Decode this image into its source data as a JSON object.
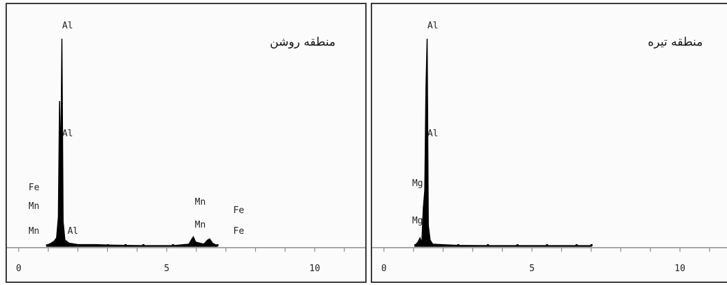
{
  "colors": {
    "frame": "#3a3a3a",
    "spectrum": "#000000",
    "background": "#fbfbfb",
    "text": "#222222"
  },
  "chart_data": [
    {
      "type": "line",
      "title": "منطقه روشن",
      "xlabel": "",
      "ylabel": "",
      "xlim": [
        -0.2,
        11.7
      ],
      "ylim": [
        0,
        100
      ],
      "x_ticks": [
        0,
        5,
        10
      ],
      "series": [
        {
          "values": [
            [
              0.95,
              0.5
            ],
            [
              1.1,
              1.5
            ],
            [
              1.2,
              2.5
            ],
            [
              1.28,
              4
            ],
            [
              1.34,
              14
            ],
            [
              1.38,
              70
            ],
            [
              1.42,
              38
            ],
            [
              1.46,
              100
            ],
            [
              1.5,
              12
            ],
            [
              1.56,
              3
            ],
            [
              1.7,
              1.5
            ],
            [
              2.0,
              0.8
            ],
            [
              2.6,
              0.8
            ],
            [
              3.0,
              0.6
            ],
            [
              3.6,
              0.4
            ],
            [
              4.2,
              0.3
            ],
            [
              5.2,
              0.3
            ],
            [
              5.75,
              1
            ],
            [
              5.85,
              3.5
            ],
            [
              5.9,
              4.5
            ],
            [
              5.98,
              2
            ],
            [
              6.25,
              1
            ],
            [
              6.38,
              3
            ],
            [
              6.45,
              3.5
            ],
            [
              6.55,
              1.5
            ],
            [
              6.7,
              0.3
            ]
          ]
        }
      ],
      "peak_labels": [
        {
          "text": "Al",
          "x": 1.47,
          "y": 105
        },
        {
          "text": "Al",
          "x": 1.47,
          "y": 53
        },
        {
          "text": "Fe",
          "x": 0.7,
          "y": 27
        },
        {
          "text": "Mn",
          "x": 0.7,
          "y": 18
        },
        {
          "text": "Mn",
          "x": 0.7,
          "y": 6
        },
        {
          "text": "Al",
          "x": 1.65,
          "y": 6
        },
        {
          "text": "Mn",
          "x": 5.95,
          "y": 20
        },
        {
          "text": "Mn",
          "x": 5.95,
          "y": 9
        },
        {
          "text": "Fe",
          "x": 7.25,
          "y": 16
        },
        {
          "text": "Fe",
          "x": 7.25,
          "y": 6
        }
      ]
    },
    {
      "type": "line",
      "title": "منطقه تیره",
      "xlabel": "",
      "ylabel": "",
      "xlim": [
        -0.2,
        11.7
      ],
      "ylim": [
        0,
        100
      ],
      "x_ticks": [
        0,
        5,
        10
      ],
      "series": [
        {
          "values": [
            [
              1.05,
              0.5
            ],
            [
              1.15,
              2
            ],
            [
              1.22,
              4
            ],
            [
              1.28,
              1.5
            ],
            [
              1.33,
              18
            ],
            [
              1.38,
              27
            ],
            [
              1.42,
              76
            ],
            [
              1.46,
              100
            ],
            [
              1.5,
              10
            ],
            [
              1.56,
              3
            ],
            [
              1.65,
              1
            ],
            [
              2.5,
              0.4
            ],
            [
              3.5,
              0.3
            ],
            [
              4.5,
              0.3
            ],
            [
              5.5,
              0.3
            ],
            [
              6.5,
              0.3
            ],
            [
              7.0,
              0.3
            ]
          ]
        }
      ],
      "peak_labels": [
        {
          "text": "Al",
          "x": 1.47,
          "y": 105
        },
        {
          "text": "Al",
          "x": 1.47,
          "y": 53
        },
        {
          "text": "Mg",
          "x": 1.32,
          "y": 29
        },
        {
          "text": "Mg",
          "x": 1.32,
          "y": 11
        }
      ]
    }
  ]
}
